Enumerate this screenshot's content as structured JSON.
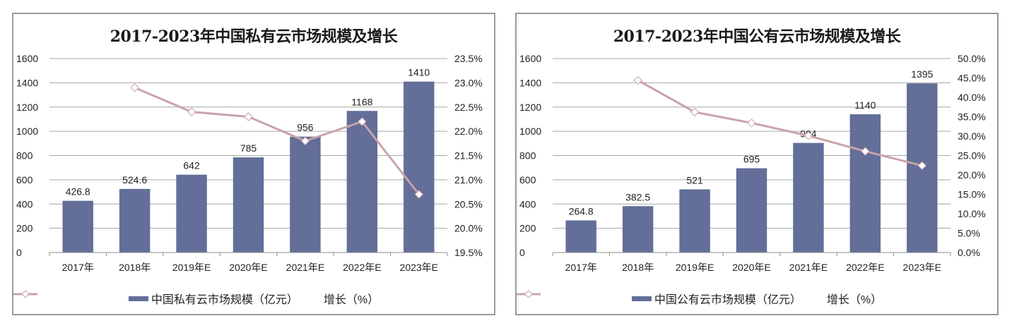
{
  "chart_data": [
    {
      "type": "bar+line",
      "title": "2017-2023年中国私有云市场规模及增长",
      "categories": [
        "2017年",
        "2018年",
        "2019年E",
        "2020年E",
        "2021年E",
        "2022年E",
        "2023年E"
      ],
      "series": [
        {
          "name": "中国私有云市场规模（亿元）",
          "type": "bar",
          "axis": "left",
          "values": [
            426.8,
            524.6,
            642,
            785,
            956,
            1168,
            1410
          ],
          "labels": [
            "426.8",
            "524.6",
            "642",
            "785",
            "956",
            "1168",
            "1410"
          ]
        },
        {
          "name": "增长（%）",
          "type": "line",
          "axis": "right",
          "values": [
            null,
            22.9,
            22.4,
            22.3,
            21.8,
            22.2,
            20.7
          ]
        }
      ],
      "left_axis": {
        "min": 0,
        "max": 1600,
        "step": 200,
        "ticks": [
          "0",
          "200",
          "400",
          "600",
          "800",
          "1000",
          "1200",
          "1400",
          "1600"
        ]
      },
      "right_axis": {
        "min": 19.5,
        "max": 23.5,
        "step": 0.5,
        "ticks": [
          "19.5%",
          "20.0%",
          "20.5%",
          "21.0%",
          "21.5%",
          "22.0%",
          "22.5%",
          "23.0%",
          "23.5%"
        ]
      },
      "grid": true,
      "legend_position": "bottom"
    },
    {
      "type": "bar+line",
      "title": "2017-2023年中国公有云市场规模及增长",
      "categories": [
        "2017年",
        "2018年",
        "2019年E",
        "2020年E",
        "2021年E",
        "2022年E",
        "2023年E"
      ],
      "series": [
        {
          "name": "中国公有云市场规模（亿元）",
          "type": "bar",
          "axis": "left",
          "values": [
            264.8,
            382.5,
            521,
            695,
            904,
            1140,
            1395
          ],
          "labels": [
            "264.8",
            "382.5",
            "521",
            "695",
            "904",
            "1140",
            "1395"
          ]
        },
        {
          "name": "增长（%）",
          "type": "line",
          "axis": "right",
          "values": [
            null,
            44.4,
            36.2,
            33.4,
            30.1,
            26.1,
            22.4
          ]
        }
      ],
      "left_axis": {
        "min": 0,
        "max": 1600,
        "step": 200,
        "ticks": [
          "0",
          "200",
          "400",
          "600",
          "800",
          "1000",
          "1200",
          "1400",
          "1600"
        ]
      },
      "right_axis": {
        "min": 0,
        "max": 50,
        "step": 5,
        "ticks": [
          "0.0%",
          "5.0%",
          "10.0%",
          "15.0%",
          "20.0%",
          "25.0%",
          "30.0%",
          "35.0%",
          "40.0%",
          "45.0%",
          "50.0%"
        ]
      },
      "grid": true,
      "legend_position": "bottom"
    }
  ],
  "colors": {
    "bar": "#636e99",
    "line": "#c9a3a8",
    "marker_fill": "#ffffff",
    "marker_stroke": "#c9a3a8",
    "grid": "#a6a6a6",
    "axis": "#8c8c8c",
    "text": "#222222"
  },
  "legend": {
    "left": {
      "bar_label": "中国私有云市场规模（亿元）",
      "line_label": "增长（%）"
    },
    "right": {
      "bar_label": "中国公有云市场规模（亿元）",
      "line_label": "增长（%）"
    }
  }
}
